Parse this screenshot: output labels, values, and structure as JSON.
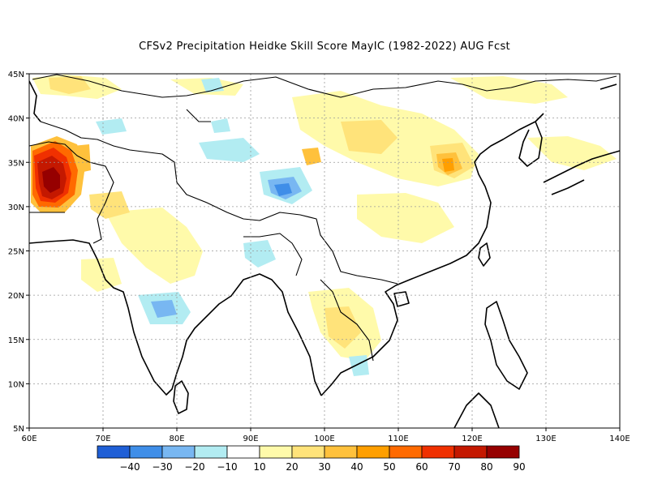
{
  "title": "CFSv2  Precipitation Heidke Skill Score MayIC (1982-2022) AUG Fcst",
  "map": {
    "lon_range": [
      60,
      140
    ],
    "lat_range": [
      5,
      45
    ],
    "lon_ticks": [
      "60E",
      "70E",
      "80E",
      "90E",
      "100E",
      "110E",
      "120E",
      "130E",
      "140E"
    ],
    "lat_ticks": [
      "5N",
      "10N",
      "15N",
      "20N",
      "25N",
      "30N",
      "35N",
      "40N",
      "45N"
    ],
    "grid": "dotted"
  },
  "colorbar": {
    "colors": [
      "#1f5fd6",
      "#3f8ee8",
      "#78b7f2",
      "#b2ecf2",
      "#ffffff",
      "#fffaaa",
      "#ffe37a",
      "#ffc13c",
      "#ff9f00",
      "#ff6a00",
      "#f03000",
      "#c41800",
      "#960000"
    ],
    "labels": [
      "-40",
      "-30",
      "-20",
      "-10",
      "10",
      "20",
      "30",
      "40",
      "50",
      "60",
      "70",
      "80",
      "90"
    ]
  }
}
